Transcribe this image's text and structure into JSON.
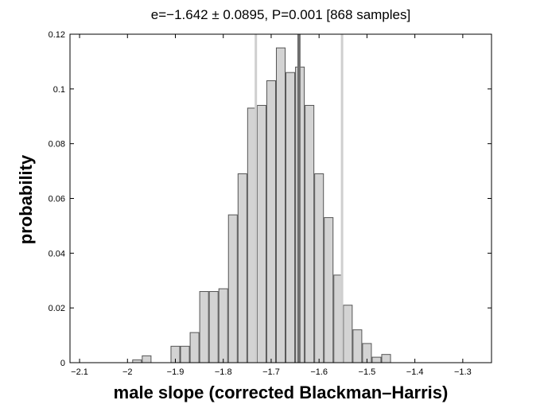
{
  "chart_data": {
    "type": "bar",
    "title": "e=−1.642 ± 0.0895, P=0.001 [868 samples]",
    "xlabel": "male slope (corrected Blackman–Harris)",
    "ylabel": "probability",
    "xlim": [
      -2.12,
      -1.24
    ],
    "ylim": [
      0,
      0.12
    ],
    "xticks": [
      -2.1,
      -2.0,
      -1.9,
      -1.8,
      -1.7,
      -1.6,
      -1.5,
      -1.4,
      -1.3
    ],
    "xtick_labels": [
      "-2.1",
      "-2",
      "-1.9",
      "-1.8",
      "-1.7",
      "-1.6",
      "-1.5",
      "-1.4",
      "-1.3"
    ],
    "yticks": [
      0,
      0.02,
      0.04,
      0.06,
      0.08,
      0.1,
      0.12
    ],
    "ytick_labels": [
      "0",
      "0.02",
      "0.04",
      "0.06",
      "0.08",
      "0.1",
      "0.12"
    ],
    "bin_width": 0.02,
    "bin_centers": [
      -1.98,
      -1.96,
      -1.94,
      -1.92,
      -1.9,
      -1.88,
      -1.86,
      -1.84,
      -1.82,
      -1.8,
      -1.78,
      -1.76,
      -1.74,
      -1.72,
      -1.7,
      -1.68,
      -1.66,
      -1.64,
      -1.62,
      -1.6,
      -1.58,
      -1.56,
      -1.54,
      -1.52,
      -1.5,
      -1.48,
      -1.46,
      -1.44,
      -1.42,
      -1.4,
      -1.38
    ],
    "values": [
      0.001,
      0.0025,
      0,
      0,
      0.006,
      0.006,
      0.011,
      0.026,
      0.026,
      0.027,
      0.054,
      0.069,
      0.093,
      0.094,
      0.103,
      0.115,
      0.106,
      0.108,
      0.094,
      0.069,
      0.053,
      0.032,
      0.021,
      0.012,
      0.007,
      0.002,
      0.003,
      0,
      0,
      0,
      0
    ],
    "estimate": -1.642,
    "ci_lines": [
      -1.732,
      -1.552
    ],
    "grid": false,
    "colors": {
      "bar_fill": "#d3d3d3",
      "bar_edge": "#555555",
      "estimate_line": "#6e6e6e",
      "ci_line": "#cfcfcf"
    }
  }
}
